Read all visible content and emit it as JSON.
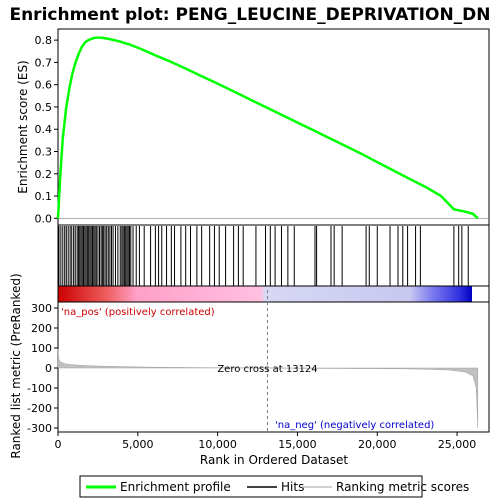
{
  "chart_data": {
    "type": "line",
    "title": "Enrichment plot: PENG_LEUCINE_DEPRIVATION_DN",
    "colors": {
      "enrichment_line": "#00ff00",
      "hits": "#000000",
      "metric_fill": "#c0c0c0",
      "pos_label": "#cc0000",
      "neg_label": "#0000cc",
      "zero_cross_line": "#808080"
    },
    "top_panel": {
      "ylabel": "Enrichment score (ES)",
      "ylim": [
        -0.03,
        0.85
      ],
      "yticks": [
        0.0,
        0.1,
        0.2,
        0.3,
        0.4,
        0.5,
        0.6,
        0.7,
        0.8
      ],
      "ytick_labels": [
        "0.0",
        "0.1",
        "0.2",
        "0.3",
        "0.4",
        "0.5",
        "0.6",
        "0.7",
        "0.8"
      ],
      "es_curve": {
        "x": [
          0,
          150,
          300,
          500,
          700,
          900,
          1100,
          1300,
          1500,
          1700,
          1900,
          2100,
          2300,
          2500,
          2800,
          3200,
          3800,
          4500,
          5200,
          6000,
          7000,
          8000,
          9000,
          10000,
          11000,
          12000,
          13000,
          14000,
          15000,
          16000,
          17000,
          18000,
          19000,
          20000,
          21000,
          22000,
          23000,
          24000,
          24800,
          25500,
          26000,
          26300
        ],
        "y": [
          0.0,
          0.2,
          0.36,
          0.49,
          0.58,
          0.65,
          0.7,
          0.74,
          0.77,
          0.79,
          0.8,
          0.806,
          0.81,
          0.812,
          0.81,
          0.805,
          0.795,
          0.78,
          0.76,
          0.735,
          0.705,
          0.672,
          0.638,
          0.605,
          0.57,
          0.535,
          0.5,
          0.465,
          0.43,
          0.395,
          0.36,
          0.325,
          0.29,
          0.252,
          0.215,
          0.178,
          0.142,
          0.1,
          0.04,
          0.03,
          0.02,
          0.0
        ]
      }
    },
    "hits": [
      60,
      180,
      300,
      420,
      520,
      640,
      760,
      860,
      980,
      1080,
      1200,
      1280,
      1360,
      1440,
      1520,
      1600,
      1680,
      1760,
      1840,
      1920,
      2000,
      2080,
      2160,
      2240,
      2320,
      2400,
      2500,
      2600,
      2700,
      2780,
      2860,
      2950,
      3050,
      3150,
      3250,
      3350,
      3450,
      3600,
      3750,
      3900,
      4000,
      4080,
      4160,
      4240,
      4320,
      4400,
      4480,
      4560,
      4700,
      4900,
      5100,
      5400,
      5800,
      6100,
      6300,
      6500,
      6800,
      7100,
      7300,
      7700,
      8000,
      8300,
      8700,
      9000,
      9500,
      9800,
      10100,
      10500,
      11000,
      11300,
      11600,
      12400,
      13000,
      13300,
      13600,
      14000,
      14400,
      14800,
      16100,
      16200,
      17100,
      17300,
      17800,
      19300,
      19500,
      20000,
      20800,
      21300,
      21600,
      21900,
      22400,
      22700,
      24800,
      25100,
      25300,
      25700
    ],
    "bottom_panel": {
      "xlabel": "Rank in Ordered Dataset",
      "ylabel": "Ranked list metric (PreRanked)",
      "xlim": [
        0,
        27000
      ],
      "ylim": [
        -320,
        330
      ],
      "xticks": [
        0,
        5000,
        10000,
        15000,
        20000,
        25000
      ],
      "xtick_labels": [
        "0",
        "5,000",
        "10,000",
        "15,000",
        "20,000",
        "25,000"
      ],
      "yticks": [
        300,
        200,
        100,
        0,
        -100,
        -200,
        -300
      ],
      "ytick_labels": [
        "300",
        "200",
        "100",
        "0",
        "-100",
        "-200",
        "-300"
      ],
      "zero_cross_rank": 13124,
      "zero_cross_label": "Zero cross at 13124",
      "pos_label": "'na_pos' (positively correlated)",
      "neg_label": "'na_neg' (negatively correlated)",
      "metric_curve": {
        "x": [
          0,
          50,
          150,
          400,
          800,
          1500,
          2500,
          4000,
          6000,
          9000,
          13124,
          16000,
          19000,
          21500,
          23000,
          24500,
          25500,
          26000,
          26200,
          26300
        ],
        "y": [
          95,
          45,
          30,
          22,
          17,
          13,
          10,
          7,
          4,
          2,
          0,
          -2,
          -3,
          -4,
          -6,
          -10,
          -20,
          -40,
          -100,
          -300
        ]
      }
    },
    "legend": {
      "items": [
        {
          "label": "Enrichment profile",
          "symbol": "line-green"
        },
        {
          "label": "Hits",
          "symbol": "line-black"
        },
        {
          "label": "Ranking metric scores",
          "symbol": "line-gray"
        }
      ]
    }
  }
}
